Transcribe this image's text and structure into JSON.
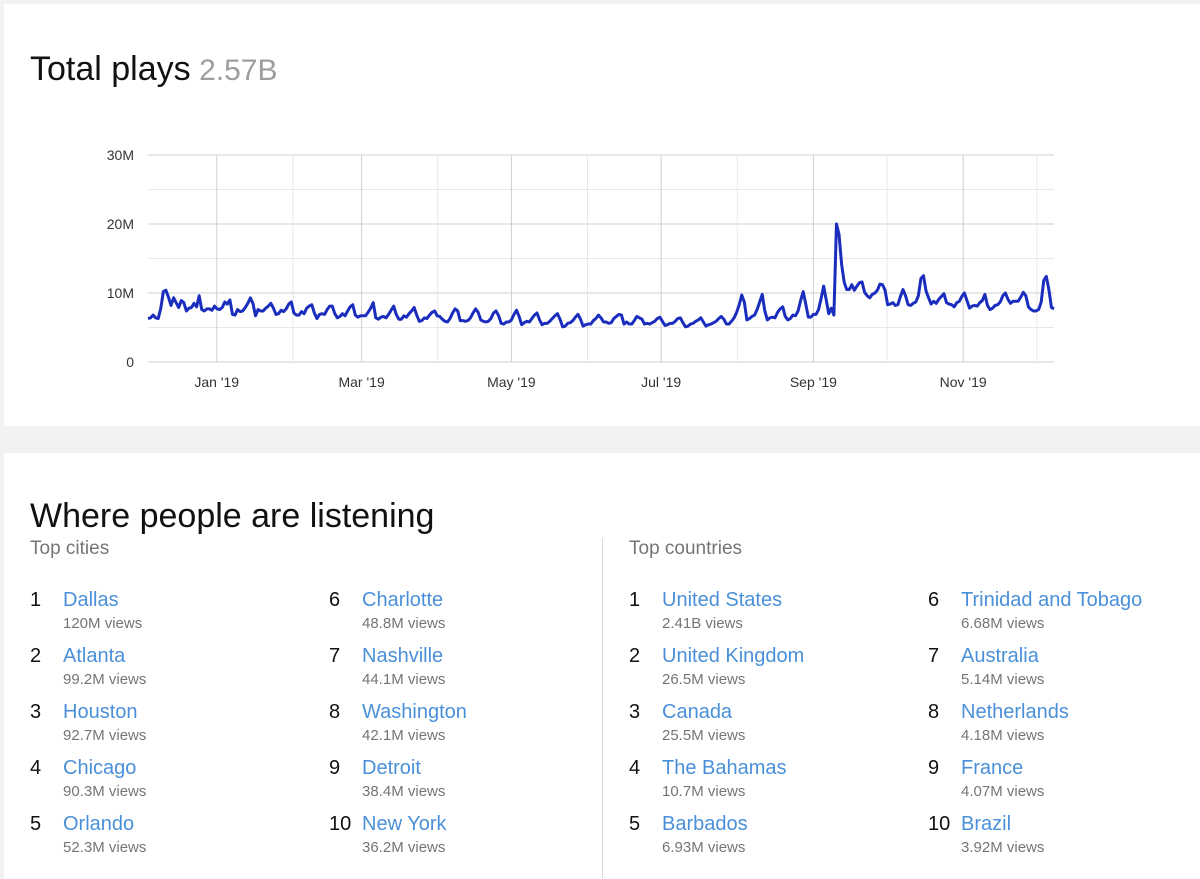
{
  "total_plays": {
    "title": "Total plays",
    "total": "2.57B"
  },
  "chart_data": {
    "type": "line",
    "title": "",
    "xlabel": "",
    "ylabel": "",
    "ylim": [
      0,
      30000000
    ],
    "y_ticks": [
      "0",
      "10M",
      "20M",
      "30M"
    ],
    "x_ticks": [
      "Jan '19",
      "Mar '19",
      "May '19",
      "Jul '19",
      "Sep '19",
      "Nov '19"
    ],
    "grid": true,
    "legend": "none",
    "line_color": "#1a2dbd",
    "series": [
      {
        "x_start": "2018-12-04",
        "x_end": "2019-12-08",
        "description": "daily plays, weekly periodic",
        "values": [
          6.3,
          6.4,
          6.8,
          6.4,
          6.3,
          7.8,
          10.2,
          10.4,
          9.4,
          8.2,
          9.3,
          8.6,
          7.9,
          8.9,
          8.6,
          7.4,
          7.8,
          7.9,
          8.5,
          8.0,
          9.6,
          7.6,
          7.4,
          7.7,
          7.7,
          7.5,
          8.1,
          7.7,
          7.6,
          7.9,
          8.7,
          8.4,
          9.0,
          6.9,
          6.8,
          7.6,
          7.3,
          7.4,
          7.9,
          8.5,
          9.3,
          8.5,
          6.7,
          7.6,
          7.4,
          7.4,
          7.8,
          8.1,
          8.5,
          7.8,
          6.9,
          7.0,
          7.5,
          7.3,
          7.7,
          8.4,
          8.7,
          7.1,
          6.8,
          6.8,
          7.3,
          7.0,
          7.8,
          8.1,
          8.3,
          7.1,
          6.3,
          6.9,
          7.0,
          6.9,
          7.6,
          8.1,
          8.1,
          7.0,
          6.4,
          6.6,
          7.0,
          6.7,
          7.4,
          8.0,
          8.3,
          6.8,
          6.5,
          6.7,
          6.7,
          6.7,
          7.2,
          7.8,
          8.6,
          6.4,
          6.2,
          6.5,
          6.6,
          6.4,
          6.9,
          7.5,
          8.1,
          6.9,
          6.2,
          6.2,
          6.7,
          6.5,
          7.0,
          7.4,
          7.9,
          6.8,
          5.9,
          6.0,
          6.4,
          6.3,
          6.8,
          7.2,
          7.4,
          6.7,
          6.6,
          6.2,
          5.9,
          5.8,
          6.3,
          7.1,
          7.7,
          7.4,
          6.0,
          6.0,
          5.9,
          6.0,
          6.4,
          7.1,
          7.7,
          7.2,
          6.1,
          5.9,
          5.8,
          5.9,
          6.3,
          7.1,
          7.4,
          6.7,
          5.6,
          5.5,
          5.8,
          5.8,
          6.1,
          6.9,
          7.5,
          6.6,
          5.4,
          5.7,
          5.9,
          5.8,
          6.3,
          6.8,
          7.1,
          6.1,
          5.4,
          5.6,
          5.6,
          5.9,
          6.3,
          6.7,
          7.0,
          6.2,
          5.1,
          5.2,
          5.6,
          5.7,
          6.0,
          6.5,
          6.9,
          6.2,
          5.2,
          5.4,
          5.5,
          5.5,
          6.0,
          6.3,
          6.8,
          6.4,
          5.8,
          5.8,
          5.6,
          5.7,
          6.3,
          6.6,
          6.9,
          6.8,
          5.5,
          5.8,
          5.5,
          5.5,
          6.0,
          6.6,
          6.4,
          6.2,
          5.5,
          5.6,
          5.5,
          5.7,
          5.9,
          6.3,
          6.5,
          5.9,
          5.3,
          5.4,
          5.6,
          5.6,
          5.9,
          6.3,
          6.4,
          5.7,
          5.1,
          5.2,
          5.5,
          5.6,
          5.9,
          6.1,
          6.4,
          5.8,
          5.2,
          5.4,
          5.5,
          5.7,
          5.9,
          6.3,
          6.6,
          6.2,
          5.5,
          5.5,
          5.9,
          6.4,
          7.2,
          8.3,
          9.7,
          8.7,
          6.1,
          6.3,
          6.6,
          6.8,
          7.6,
          8.7,
          9.8,
          7.4,
          6.1,
          6.4,
          6.5,
          6.4,
          7.2,
          7.7,
          8.0,
          6.6,
          6.1,
          6.3,
          6.8,
          6.7,
          7.4,
          8.9,
          10.2,
          8.4,
          6.5,
          6.5,
          6.9,
          6.9,
          7.6,
          9.2,
          11.0,
          9.0,
          7.0,
          7.8,
          6.8,
          20.0,
          18.5,
          14.2,
          11.6,
          10.5,
          10.5,
          11.2,
          10.4,
          11.0,
          11.5,
          11.6,
          10.1,
          9.6,
          9.3,
          9.8,
          10.0,
          10.4,
          11.3,
          11.2,
          10.4,
          8.3,
          8.4,
          8.6,
          8.2,
          8.3,
          9.5,
          10.5,
          9.6,
          8.3,
          8.2,
          8.5,
          8.7,
          9.6,
          12.1,
          12.5,
          10.3,
          9.3,
          8.4,
          8.8,
          8.5,
          9.1,
          9.5,
          9.9,
          8.6,
          8.4,
          8.3,
          8.0,
          8.6,
          8.8,
          9.5,
          10.0,
          8.9,
          7.8,
          8.1,
          8.2,
          8.1,
          8.6,
          8.9,
          9.8,
          8.2,
          7.6,
          7.8,
          8.2,
          8.3,
          8.7,
          9.6,
          10.0,
          9.1,
          8.5,
          8.8,
          8.8,
          8.8,
          9.4,
          10.1,
          9.6,
          8.0,
          7.6,
          7.4,
          7.4,
          7.6,
          8.7,
          11.8,
          12.4,
          10.5,
          7.9,
          7.7
        ]
      }
    ]
  },
  "geo": {
    "title": "Where people are listening",
    "cities": {
      "label": "Top cities",
      "items": [
        {
          "rank": "1",
          "name": "Dallas",
          "views": "120M views"
        },
        {
          "rank": "2",
          "name": "Atlanta",
          "views": "99.2M views"
        },
        {
          "rank": "3",
          "name": "Houston",
          "views": "92.7M views"
        },
        {
          "rank": "4",
          "name": "Chicago",
          "views": "90.3M views"
        },
        {
          "rank": "5",
          "name": "Orlando",
          "views": "52.3M views"
        },
        {
          "rank": "6",
          "name": "Charlotte",
          "views": "48.8M views"
        },
        {
          "rank": "7",
          "name": "Nashville",
          "views": "44.1M views"
        },
        {
          "rank": "8",
          "name": "Washington",
          "views": "42.1M views"
        },
        {
          "rank": "9",
          "name": "Detroit",
          "views": "38.4M views"
        },
        {
          "rank": "10",
          "name": "New York",
          "views": "36.2M views"
        }
      ]
    },
    "countries": {
      "label": "Top countries",
      "items": [
        {
          "rank": "1",
          "name": "United States",
          "views": "2.41B views"
        },
        {
          "rank": "2",
          "name": "United Kingdom",
          "views": "26.5M views"
        },
        {
          "rank": "3",
          "name": "Canada",
          "views": "25.5M views"
        },
        {
          "rank": "4",
          "name": "The Bahamas",
          "views": "10.7M views"
        },
        {
          "rank": "5",
          "name": "Barbados",
          "views": "6.93M views"
        },
        {
          "rank": "6",
          "name": "Trinidad and Tobago",
          "views": "6.68M views"
        },
        {
          "rank": "7",
          "name": "Australia",
          "views": "5.14M views"
        },
        {
          "rank": "8",
          "name": "Netherlands",
          "views": "4.18M views"
        },
        {
          "rank": "9",
          "name": "France",
          "views": "4.07M views"
        },
        {
          "rank": "10",
          "name": "Brazil",
          "views": "3.92M views"
        }
      ]
    }
  },
  "colors": {
    "link": "#4a90d9",
    "line": "#1a2dbd",
    "muted": "#757575"
  }
}
